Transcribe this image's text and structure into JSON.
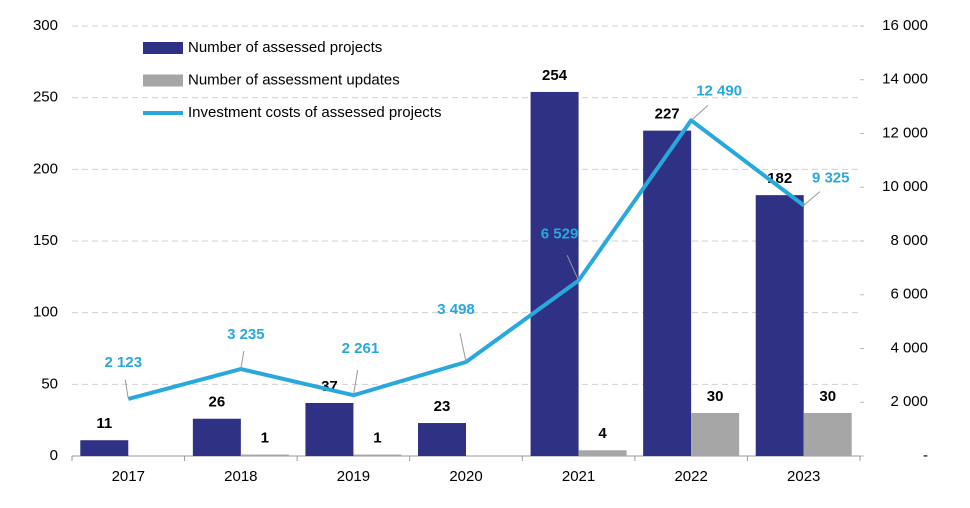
{
  "chart_data": {
    "type": "bar",
    "categories": [
      "2017",
      "2018",
      "2019",
      "2020",
      "2021",
      "2022",
      "2023"
    ],
    "series": [
      {
        "name": "Number of assessed projects",
        "type": "bar",
        "color": "#2e3184",
        "values": [
          11,
          26,
          37,
          23,
          254,
          227,
          182
        ]
      },
      {
        "name": "Number of assessment updates",
        "type": "bar",
        "color": "#a6a6a6",
        "values": [
          null,
          1,
          1,
          null,
          4,
          30,
          30
        ]
      },
      {
        "name": "Investment costs of assessed projects",
        "type": "line",
        "axis": "y2",
        "color": "#29a8dd",
        "values": [
          2123,
          3235,
          2261,
          3498,
          6529,
          12490,
          9325
        ],
        "value_labels": [
          "2 123",
          "3 235",
          "2 261",
          "3 498",
          "6 529",
          "12 490",
          "9 325"
        ]
      }
    ],
    "ylim": [
      0,
      300
    ],
    "yticks": [
      0,
      50,
      100,
      150,
      200,
      250,
      300
    ],
    "y2lim": [
      0,
      16000
    ],
    "y2ticks": [
      {
        "value": 0,
        "label": "-"
      },
      {
        "value": 2000,
        "label": "2 000"
      },
      {
        "value": 4000,
        "label": "4 000"
      },
      {
        "value": 6000,
        "label": "6 000"
      },
      {
        "value": 8000,
        "label": "8 000"
      },
      {
        "value": 10000,
        "label": "10 000"
      },
      {
        "value": 12000,
        "label": "12 000"
      },
      {
        "value": 14000,
        "label": "14 000"
      },
      {
        "value": 16000,
        "label": "16 000"
      }
    ],
    "grid": true,
    "legend": "top-left"
  }
}
